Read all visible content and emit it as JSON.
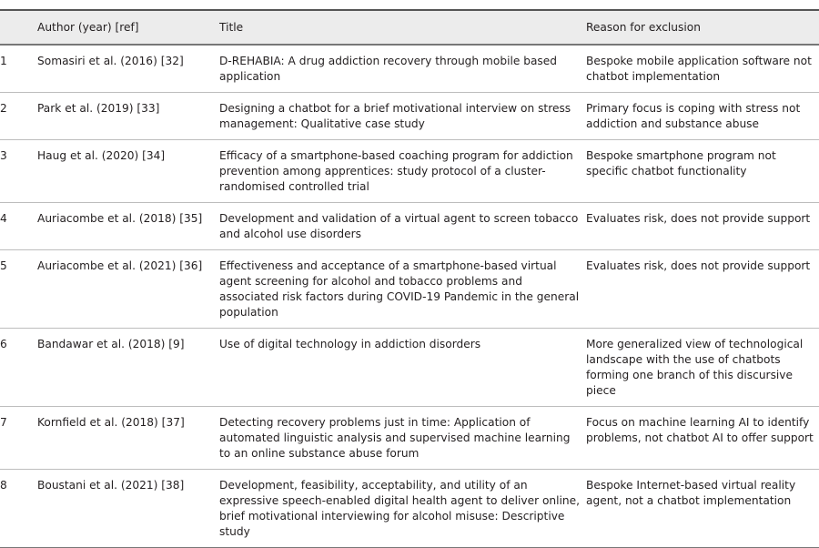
{
  "table": {
    "headers": [
      "",
      "Author (year) [ref]",
      "Title",
      "Reason for exclusion"
    ],
    "rows": [
      {
        "num": "1",
        "author": "Somasiri et al. (2016) [32]",
        "title": "D-REHABIA: A drug addiction recovery through mobile based application",
        "reason": "Bespoke mobile application software not chatbot implementation"
      },
      {
        "num": "2",
        "author": "Park et al. (2019) [33]",
        "title": "Designing a chatbot for a brief motivational interview on stress management: Qualitative case study",
        "reason": "Primary focus is coping with stress not addiction and substance abuse"
      },
      {
        "num": "3",
        "author": "Haug et al. (2020) [34]",
        "title": "Efficacy of a smartphone-based coaching program for addiction prevention among apprentices: study protocol of a cluster-randomised controlled trial",
        "reason": "Bespoke smartphone program not specific chatbot functionality"
      },
      {
        "num": "4",
        "author": "Auriacombe et al. (2018) [35]",
        "title": "Development and validation of a virtual agent to screen tobacco and alcohol use disorders",
        "reason": "Evaluates risk, does not provide support"
      },
      {
        "num": "5",
        "author": "Auriacombe et al. (2021) [36]",
        "title": "Effectiveness and acceptance of a smartphone-based virtual agent screening for alcohol and tobacco problems and associated risk factors during COVID-19 Pandemic in the general population",
        "reason": "Evaluates risk, does not provide support"
      },
      {
        "num": "6",
        "author": "Bandawar et al. (2018) [9]",
        "title": "Use of digital technology in addiction disorders",
        "reason": "More generalized view of technological landscape with the use of chatbots forming one branch of this discursive piece"
      },
      {
        "num": "7",
        "author": "Kornfield et al. (2018) [37]",
        "title": "Detecting recovery problems just in time: Application of automated linguistic analysis and supervised machine learning to an online substance abuse forum",
        "reason": "Focus on machine learning AI to identify problems, not chatbot AI to offer support"
      },
      {
        "num": "8",
        "author": "Boustani et al. (2021) [38]",
        "title": "Development, feasibility, acceptability, and utility of an expressive speech-enabled digital health agent to deliver online, brief motivational interviewing for alcohol misuse: Descriptive study",
        "reason": "Bespoke Internet-based virtual reality agent, not a chatbot implementation"
      }
    ]
  }
}
